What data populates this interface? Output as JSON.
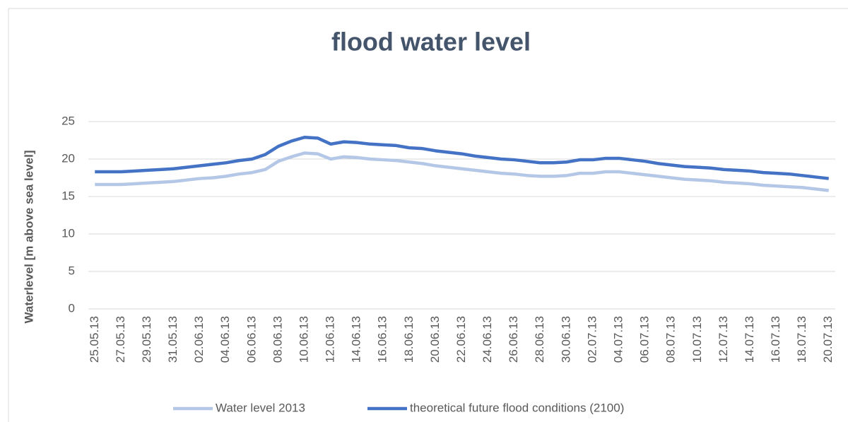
{
  "chart_data": {
    "type": "line",
    "title": "flood water level",
    "y_label": "Waterlevel [m above sea level]",
    "categories": [
      "25.05.13",
      null,
      "27.05.13",
      null,
      "29.05.13",
      null,
      "31.05.13",
      null,
      "02.06.13",
      null,
      "04.06.13",
      null,
      "06.06.13",
      null,
      "08.06.13",
      null,
      "10.06.13",
      null,
      "12.06.13",
      null,
      "14.06.13",
      null,
      "16.06.13",
      null,
      "18.06.13",
      null,
      "20.06.13",
      null,
      "22.06.13",
      null,
      "24.06.13",
      null,
      "26.06.13",
      null,
      "28.06.13",
      null,
      "30.06.13",
      null,
      "02.07.13",
      null,
      "04.07.13",
      null,
      "06.07.13",
      null,
      "08.07.13",
      null,
      "10.07.13",
      null,
      "12.07.13",
      null,
      "14.07.13",
      null,
      "16.07.13",
      null,
      "18.07.13",
      null,
      "20.07.13"
    ],
    "series": [
      {
        "name": "Water level 2013",
        "color": "#b4c7e7",
        "values": [
          16.6,
          16.6,
          16.6,
          16.7,
          16.8,
          16.9,
          17.0,
          17.2,
          17.4,
          17.5,
          17.7,
          18.0,
          18.2,
          18.6,
          19.7,
          20.3,
          20.8,
          20.7,
          20.0,
          20.3,
          20.2,
          20.0,
          19.9,
          19.8,
          19.6,
          19.4,
          19.1,
          18.9,
          18.7,
          18.5,
          18.3,
          18.1,
          18.0,
          17.8,
          17.7,
          17.7,
          17.8,
          18.1,
          18.1,
          18.3,
          18.3,
          18.1,
          17.9,
          17.7,
          17.5,
          17.3,
          17.2,
          17.1,
          16.9,
          16.8,
          16.7,
          16.5,
          16.4,
          16.3,
          16.2,
          16.0,
          15.8
        ]
      },
      {
        "name": "theoretical future flood conditions (2100)",
        "color": "#4472c4",
        "values": [
          18.3,
          18.3,
          18.3,
          18.4,
          18.5,
          18.6,
          18.7,
          18.9,
          19.1,
          19.3,
          19.5,
          19.8,
          20.0,
          20.6,
          21.7,
          22.4,
          22.9,
          22.8,
          22.0,
          22.3,
          22.2,
          22.0,
          21.9,
          21.8,
          21.5,
          21.4,
          21.1,
          20.9,
          20.7,
          20.4,
          20.2,
          20.0,
          19.9,
          19.7,
          19.5,
          19.5,
          19.6,
          19.9,
          19.9,
          20.1,
          20.1,
          19.9,
          19.7,
          19.4,
          19.2,
          19.0,
          18.9,
          18.8,
          18.6,
          18.5,
          18.4,
          18.2,
          18.1,
          18.0,
          17.8,
          17.6,
          17.4
        ]
      }
    ],
    "ylim": [
      0,
      25
    ],
    "yticks": [
      0,
      5,
      10,
      15,
      20,
      25
    ],
    "grid": true,
    "legend": "bottom"
  }
}
